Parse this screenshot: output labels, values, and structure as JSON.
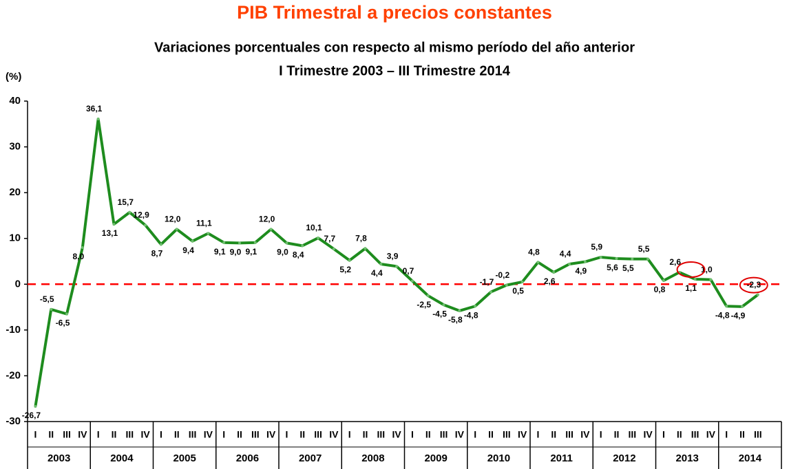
{
  "chart_data": {
    "type": "line",
    "title": "PIB Trimestral a precios constantes",
    "subtitle": "Variaciones porcentuales con respecto al mismo período del año anterior",
    "subtitle2": "I Trimestre 2003 – III Trimestre 2014",
    "ylabel": "(%)",
    "categories": [
      "I",
      "II",
      "III",
      "IV",
      "I",
      "II",
      "III",
      "IV",
      "I",
      "II",
      "III",
      "IV",
      "I",
      "II",
      "III",
      "IV",
      "I",
      "II",
      "III",
      "IV",
      "I",
      "II",
      "III",
      "IV",
      "I",
      "II",
      "III",
      "IV",
      "I",
      "II",
      "III",
      "IV",
      "I",
      "II",
      "III",
      "IV",
      "I",
      "II",
      "III",
      "IV",
      "I",
      "II",
      "III",
      "IV",
      "I",
      "II",
      "III"
    ],
    "groups": [
      "2003",
      "2004",
      "2005",
      "2006",
      "2007",
      "2008",
      "2009",
      "2010",
      "2011",
      "2012",
      "2013",
      "2014"
    ],
    "series": [
      {
        "name": "PIB",
        "color": "#1e8c1e",
        "values": [
          -26.7,
          -5.5,
          -6.5,
          8.0,
          36.1,
          13.1,
          15.7,
          12.9,
          8.7,
          12.0,
          9.4,
          11.1,
          9.1,
          9.0,
          9.1,
          12.0,
          9.0,
          8.4,
          10.1,
          7.7,
          5.2,
          7.8,
          4.4,
          3.9,
          0.7,
          -2.5,
          -4.5,
          -5.8,
          -4.8,
          -1.7,
          -0.2,
          0.5,
          4.8,
          2.6,
          4.4,
          4.9,
          5.9,
          5.6,
          5.5,
          5.5,
          0.8,
          2.6,
          1.1,
          1.0,
          -4.8,
          -4.9,
          -2.3
        ],
        "value_labels": [
          "-26,7",
          "-5,5",
          "-6,5",
          "8,0",
          "36,1",
          "13,1",
          "15,7",
          "12,9",
          "8,7",
          "12,0",
          "9,4",
          "11,1",
          "9,1",
          "9,0",
          "9,1",
          "12,0",
          "9,0",
          "8,4",
          "10,1",
          "7,7",
          "5,2",
          "7,8",
          "4,4",
          "3,9",
          "0,7",
          "-2,5",
          "-4,5",
          "-5,8",
          "-4,8",
          "-1,7",
          "-0,2",
          "0,5",
          "4,8",
          "2,6",
          "4,4",
          "4,9",
          "5,9",
          "5,6",
          "5,5",
          "5,5",
          "0,8",
          "2,6",
          "1,1",
          "1,0",
          "-4,8",
          "-4,9",
          "-2,3"
        ]
      }
    ],
    "highlighted": [
      42,
      46
    ],
    "hline": {
      "value": 0,
      "color": "#ff0000"
    },
    "ylim": [
      -30,
      40
    ],
    "yticks": [
      -30,
      -20,
      -10,
      0,
      10,
      20,
      30,
      40
    ]
  }
}
